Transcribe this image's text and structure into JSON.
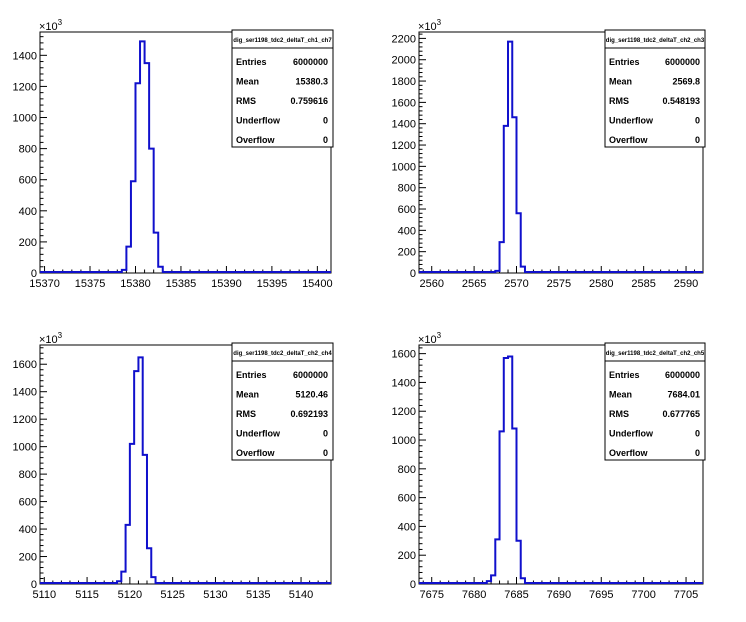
{
  "panels": [
    {
      "name": "ch1-ch7",
      "stats_title": "dig_ser1198_tdc2_deltaT_ch1_ch7",
      "multiplier_base": "×10",
      "multiplier_exp": "3",
      "stats": [
        {
          "label": "Entries",
          "value": "6000000"
        },
        {
          "label": "Mean",
          "value": "15380.3"
        },
        {
          "label": "RMS",
          "value": "0.759616"
        },
        {
          "label": "Underflow",
          "value": "0"
        },
        {
          "label": "Overflow",
          "value": "0"
        }
      ]
    },
    {
      "name": "ch2-ch3",
      "stats_title": "dig_ser1198_tdc2_deltaT_ch2_ch3",
      "multiplier_base": "×10",
      "multiplier_exp": "3",
      "stats": [
        {
          "label": "Entries",
          "value": "6000000"
        },
        {
          "label": "Mean",
          "value": "2569.8"
        },
        {
          "label": "RMS",
          "value": "0.548193"
        },
        {
          "label": "Underflow",
          "value": "0"
        },
        {
          "label": "Overflow",
          "value": "0"
        }
      ]
    },
    {
      "name": "ch2-ch4",
      "stats_title": "dig_ser1198_tdc2_deltaT_ch2_ch4",
      "multiplier_base": "×10",
      "multiplier_exp": "3",
      "stats": [
        {
          "label": "Entries",
          "value": "6000000"
        },
        {
          "label": "Mean",
          "value": "5120.46"
        },
        {
          "label": "RMS",
          "value": "0.692193"
        },
        {
          "label": "Underflow",
          "value": "0"
        },
        {
          "label": "Overflow",
          "value": "0"
        }
      ]
    },
    {
      "name": "ch2-ch5",
      "stats_title": "dig_ser1198_tdc2_deltaT_ch2_ch5",
      "multiplier_base": "×10",
      "multiplier_exp": "3",
      "stats": [
        {
          "label": "Entries",
          "value": "6000000"
        },
        {
          "label": "Mean",
          "value": "7684.01"
        },
        {
          "label": "RMS",
          "value": "0.677765"
        },
        {
          "label": "Underflow",
          "value": "0"
        },
        {
          "label": "Overflow",
          "value": "0"
        }
      ]
    }
  ],
  "colors": {
    "histogram_line": "#1010cc",
    "axis": "#000000",
    "background": "#ffffff"
  },
  "chart_data": [
    {
      "type": "histogram",
      "title": "",
      "xlabel": "",
      "ylabel": "",
      "xlim": [
        15369.5,
        15401.5
      ],
      "ylim": [
        0,
        1550
      ],
      "xticks": [
        15370,
        15375,
        15380,
        15385,
        15390,
        15395,
        15400
      ],
      "yticks": [
        0,
        200,
        400,
        600,
        800,
        1000,
        1200,
        1400
      ],
      "y_multiplier": "10^3",
      "bins": [
        {
          "x0": 15378.5,
          "x1": 15379.0,
          "y": 20
        },
        {
          "x0": 15379.0,
          "x1": 15379.5,
          "y": 170
        },
        {
          "x0": 15379.5,
          "x1": 15380.0,
          "y": 590
        },
        {
          "x0": 15380.0,
          "x1": 15380.5,
          "y": 1220
        },
        {
          "x0": 15380.5,
          "x1": 15381.0,
          "y": 1490
        },
        {
          "x0": 15381.0,
          "x1": 15381.5,
          "y": 1350
        },
        {
          "x0": 15381.5,
          "x1": 15382.0,
          "y": 800
        },
        {
          "x0": 15382.0,
          "x1": 15382.5,
          "y": 260
        },
        {
          "x0": 15382.5,
          "x1": 15383.0,
          "y": 40
        }
      ],
      "grid": false,
      "legend": "stats box top-right"
    },
    {
      "type": "histogram",
      "title": "",
      "xlabel": "",
      "ylabel": "",
      "xlim": [
        2558.5,
        2592.0
      ],
      "ylim": [
        0,
        2260
      ],
      "xticks": [
        2560,
        2565,
        2570,
        2575,
        2580,
        2585,
        2590
      ],
      "yticks": [
        0,
        200,
        400,
        600,
        800,
        1000,
        1200,
        1400,
        1600,
        1800,
        2000,
        2200
      ],
      "y_multiplier": "10^3",
      "bins": [
        {
          "x0": 2567.5,
          "x1": 2568.0,
          "y": 20
        },
        {
          "x0": 2568.0,
          "x1": 2568.5,
          "y": 290
        },
        {
          "x0": 2568.5,
          "x1": 2569.0,
          "y": 1380
        },
        {
          "x0": 2569.0,
          "x1": 2569.5,
          "y": 2170
        },
        {
          "x0": 2569.5,
          "x1": 2570.0,
          "y": 1460
        },
        {
          "x0": 2570.0,
          "x1": 2570.5,
          "y": 560
        },
        {
          "x0": 2570.5,
          "x1": 2571.0,
          "y": 60
        }
      ],
      "grid": false,
      "legend": "stats box top-right"
    },
    {
      "type": "histogram",
      "title": "",
      "xlabel": "",
      "ylabel": "",
      "xlim": [
        5109.5,
        5143.5
      ],
      "ylim": [
        0,
        1740
      ],
      "xticks": [
        5110,
        5115,
        5120,
        5125,
        5130,
        5135,
        5140
      ],
      "yticks": [
        0,
        200,
        400,
        600,
        800,
        1000,
        1200,
        1400,
        1600
      ],
      "y_multiplier": "10^3",
      "bins": [
        {
          "x0": 5118.5,
          "x1": 5119.0,
          "y": 20
        },
        {
          "x0": 5119.0,
          "x1": 5119.5,
          "y": 90
        },
        {
          "x0": 5119.5,
          "x1": 5120.0,
          "y": 430
        },
        {
          "x0": 5120.0,
          "x1": 5120.5,
          "y": 1020
        },
        {
          "x0": 5120.5,
          "x1": 5121.0,
          "y": 1550
        },
        {
          "x0": 5121.0,
          "x1": 5121.5,
          "y": 1650
        },
        {
          "x0": 5121.5,
          "x1": 5122.0,
          "y": 940
        },
        {
          "x0": 5122.0,
          "x1": 5122.5,
          "y": 260
        },
        {
          "x0": 5122.5,
          "x1": 5123.0,
          "y": 50
        }
      ],
      "grid": false,
      "legend": "stats box top-right"
    },
    {
      "type": "histogram",
      "title": "",
      "xlabel": "",
      "ylabel": "",
      "xlim": [
        7673.5,
        7707.0
      ],
      "ylim": [
        0,
        1660
      ],
      "xticks": [
        7675,
        7680,
        7685,
        7690,
        7695,
        7700,
        7705
      ],
      "yticks": [
        0,
        200,
        400,
        600,
        800,
        1000,
        1200,
        1400,
        1600
      ],
      "y_multiplier": "10^3",
      "bins": [
        {
          "x0": 7681.5,
          "x1": 7682.0,
          "y": 20
        },
        {
          "x0": 7682.0,
          "x1": 7682.5,
          "y": 60
        },
        {
          "x0": 7682.5,
          "x1": 7683.0,
          "y": 310
        },
        {
          "x0": 7683.0,
          "x1": 7683.5,
          "y": 1060
        },
        {
          "x0": 7683.5,
          "x1": 7684.0,
          "y": 1570
        },
        {
          "x0": 7684.0,
          "x1": 7684.5,
          "y": 1580
        },
        {
          "x0": 7684.5,
          "x1": 7685.0,
          "y": 1080
        },
        {
          "x0": 7685.0,
          "x1": 7685.5,
          "y": 300
        },
        {
          "x0": 7685.5,
          "x1": 7686.0,
          "y": 40
        }
      ],
      "grid": false,
      "legend": "stats box top-right"
    }
  ]
}
